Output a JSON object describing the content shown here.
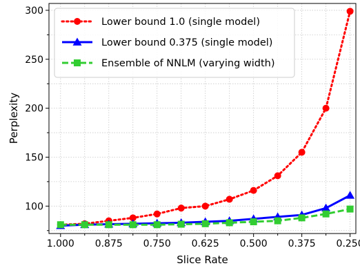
{
  "chart_data": {
    "type": "line",
    "xlabel": "Slice Rate",
    "ylabel": "Perplexity",
    "x": [
      1.0,
      0.9375,
      0.875,
      0.8125,
      0.75,
      0.6875,
      0.625,
      0.5625,
      0.5,
      0.4375,
      0.375,
      0.3125,
      0.25
    ],
    "xticks": [
      "1.000",
      "0.875",
      "0.750",
      "0.625",
      "0.500",
      "0.375",
      "0.250"
    ],
    "xlim": [
      1.03,
      0.235
    ],
    "x_reversed": true,
    "ylim": [
      72,
      307
    ],
    "yticks": [
      "100",
      "150",
      "200",
      "250",
      "300"
    ],
    "grid": true,
    "legend_position": "top-left",
    "series": [
      {
        "name": "Lower bound 1.0 (single model)",
        "color": "#ff0000",
        "line_style": "dotted",
        "marker": "circle",
        "values": [
          81,
          82,
          85,
          88,
          92,
          98,
          100,
          107,
          116,
          131,
          155,
          200,
          299
        ]
      },
      {
        "name": "Lower bound 0.375 (single model)",
        "color": "#0000ff",
        "line_style": "solid",
        "marker": "triangle",
        "values": [
          80,
          81,
          81.5,
          82,
          82.5,
          83,
          84,
          85,
          87,
          89,
          91,
          98,
          111
        ]
      },
      {
        "name": "Ensemble of NNLM (varying width)",
        "color": "#32cd32",
        "line_style": "dashed",
        "marker": "square",
        "values": [
          81,
          81,
          81,
          81,
          81,
          81.5,
          82,
          83,
          84,
          85,
          88,
          92,
          97
        ]
      }
    ]
  }
}
